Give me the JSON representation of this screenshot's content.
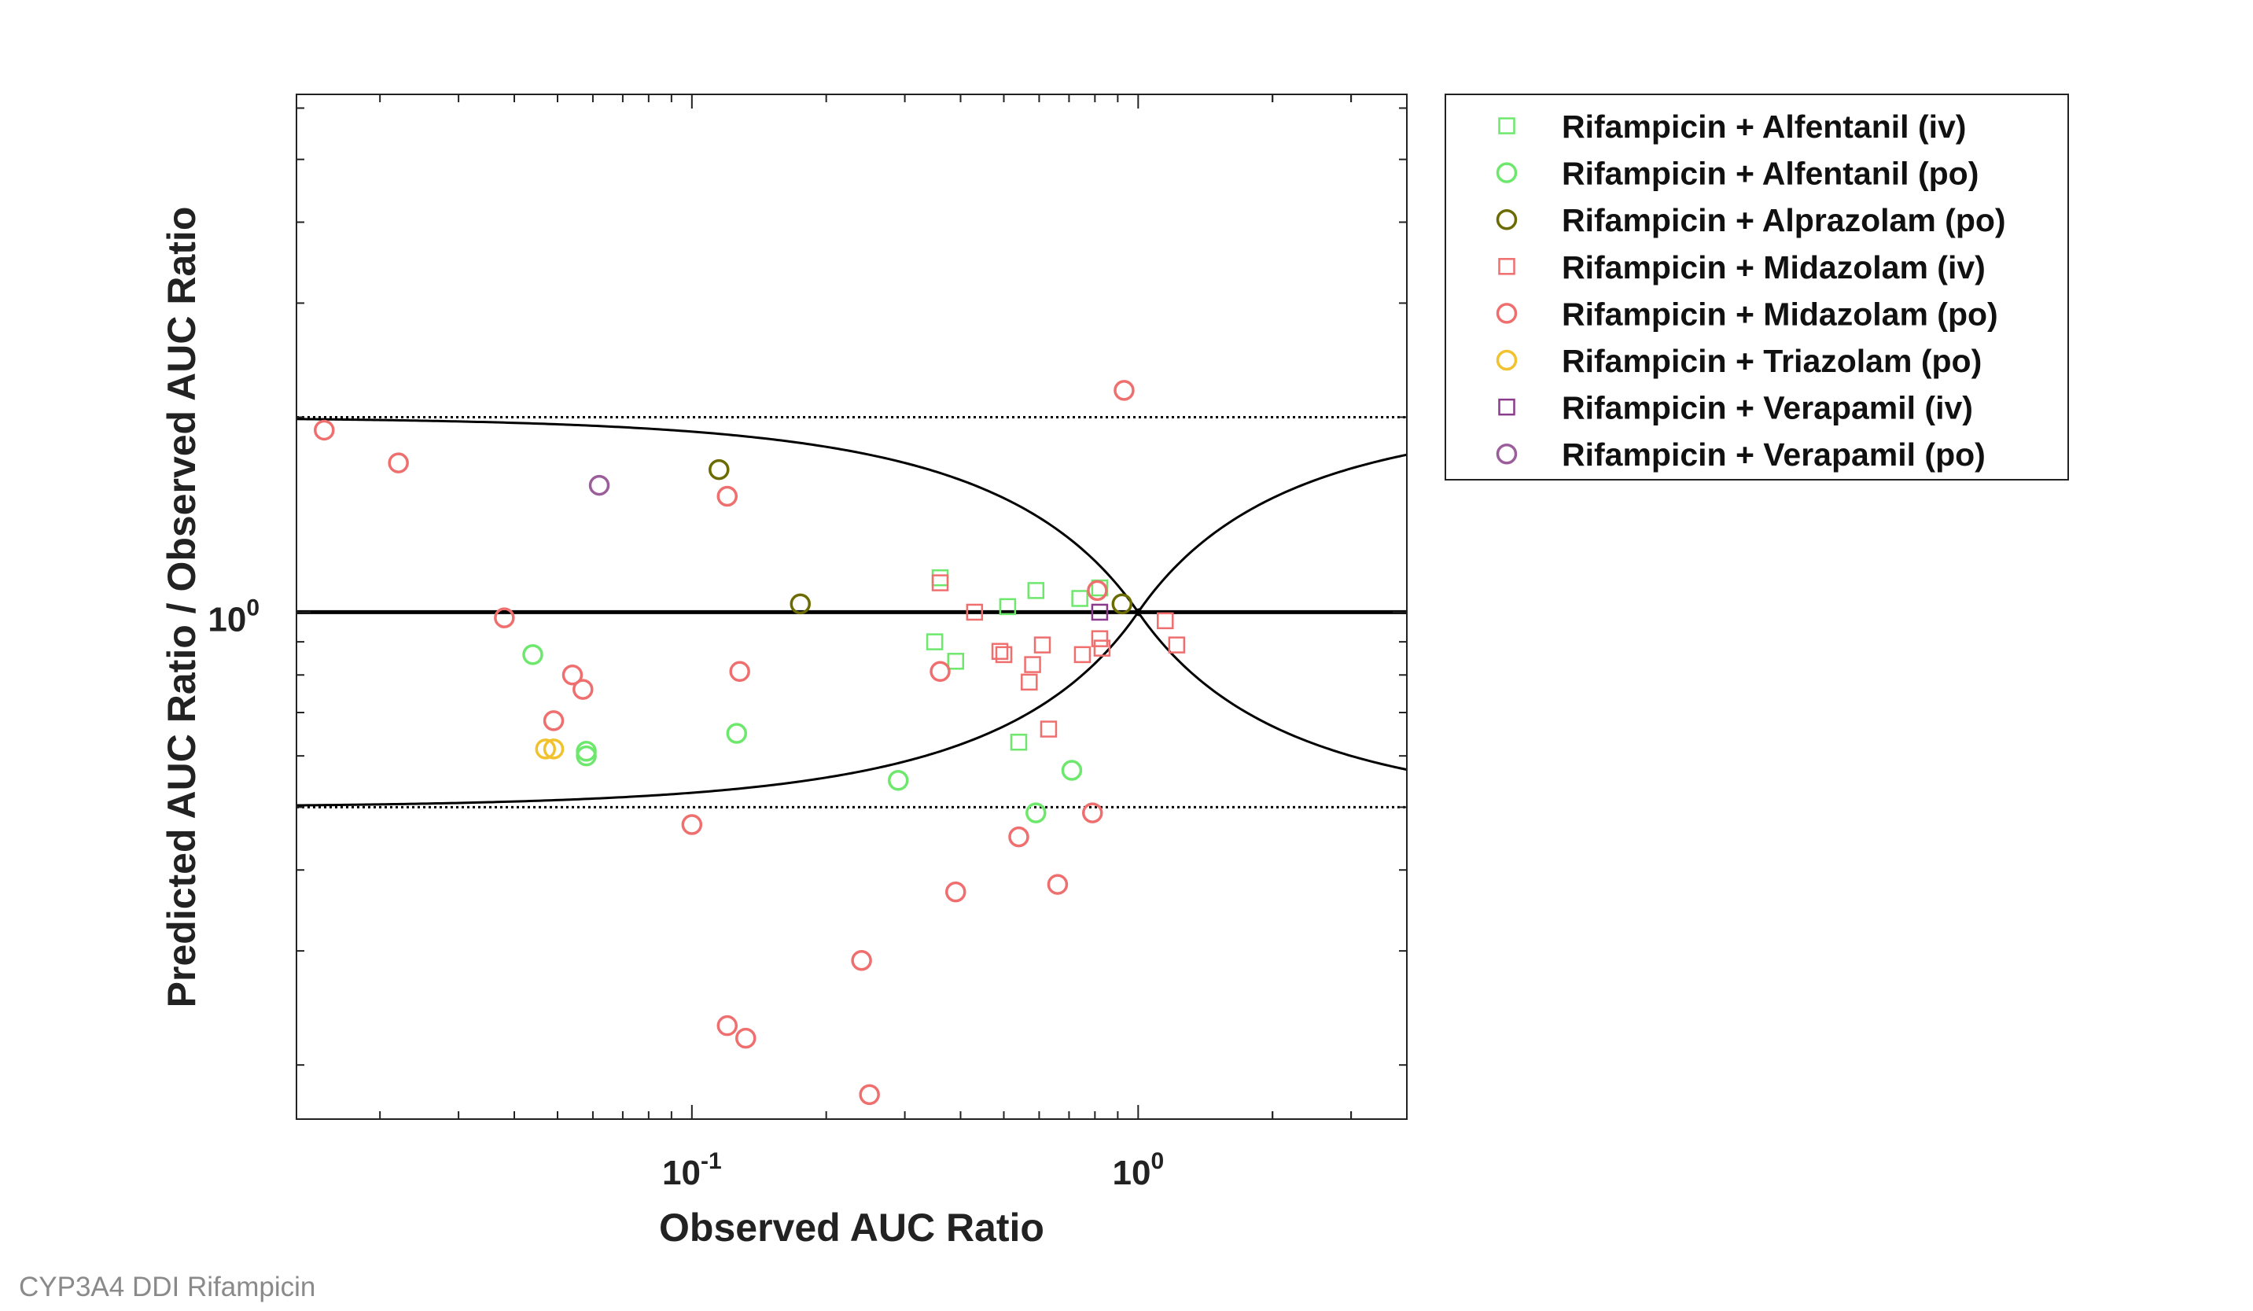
{
  "caption": "CYP3A4 DDI Rifampicin",
  "chart_data": {
    "type": "scatter",
    "title": "",
    "xlabel": "Observed AUC Ratio",
    "ylabel": "Predicted AUC Ratio / Observed AUC Ratio",
    "xscale": "log",
    "yscale": "log",
    "xlim": [
      0.013,
      4.0
    ],
    "ylim": [
      0.165,
      6.3
    ],
    "xtick_labels": [
      {
        "value": 0.1,
        "base": "10",
        "exp": "-1"
      },
      {
        "value": 1,
        "base": "10",
        "exp": "0"
      }
    ],
    "ytick_labels": [
      {
        "value": 1,
        "base": "10",
        "exp": "0"
      }
    ],
    "grid": false,
    "legend_position": "outside top-right",
    "guides": {
      "unity": 1,
      "dotted_limits": [
        0.5,
        2
      ],
      "curve": "guest limits (delta 1)"
    },
    "series": [
      {
        "name": "Rifampicin + Alfentanil (iv)",
        "marker": "square",
        "color": "#6de86d",
        "points": [
          [
            0.36,
            1.13
          ],
          [
            0.51,
            1.02
          ],
          [
            0.59,
            1.08
          ],
          [
            0.74,
            1.05
          ],
          [
            0.82,
            1.09
          ],
          [
            0.35,
            0.9
          ],
          [
            0.39,
            0.84
          ],
          [
            0.54,
            0.63
          ]
        ]
      },
      {
        "name": "Rifampicin + Alfentanil (po)",
        "marker": "circle",
        "color": "#6de86d",
        "points": [
          [
            0.044,
            0.86
          ],
          [
            0.058,
            0.61
          ],
          [
            0.058,
            0.6
          ],
          [
            0.126,
            0.65
          ],
          [
            0.29,
            0.55
          ],
          [
            0.71,
            0.57
          ],
          [
            0.59,
            0.49
          ]
        ]
      },
      {
        "name": "Rifampicin + Alprazolam (po)",
        "marker": "circle",
        "color": "#6b6b00",
        "points": [
          [
            0.115,
            1.66
          ],
          [
            0.175,
            1.03
          ],
          [
            0.92,
            1.03
          ]
        ]
      },
      {
        "name": "Rifampicin + Midazolam (iv)",
        "marker": "square",
        "color": "#ef6f6f",
        "points": [
          [
            0.36,
            1.11
          ],
          [
            0.43,
            1.0
          ],
          [
            0.49,
            0.87
          ],
          [
            0.5,
            0.86
          ],
          [
            0.57,
            0.78
          ],
          [
            0.58,
            0.83
          ],
          [
            0.61,
            0.89
          ],
          [
            0.63,
            0.66
          ],
          [
            0.75,
            0.86
          ],
          [
            0.82,
            0.91
          ],
          [
            0.83,
            0.88
          ],
          [
            1.15,
            0.97
          ],
          [
            1.22,
            0.89
          ]
        ]
      },
      {
        "name": "Rifampicin + Midazolam (po)",
        "marker": "circle",
        "color": "#ef6f6f",
        "points": [
          [
            0.015,
            1.91
          ],
          [
            0.022,
            1.7
          ],
          [
            0.038,
            0.98
          ],
          [
            0.049,
            0.68
          ],
          [
            0.054,
            0.8
          ],
          [
            0.057,
            0.76
          ],
          [
            0.1,
            0.47
          ],
          [
            0.12,
            1.51
          ],
          [
            0.128,
            0.81
          ],
          [
            0.12,
            0.23
          ],
          [
            0.132,
            0.22
          ],
          [
            0.24,
            0.29
          ],
          [
            0.25,
            0.18
          ],
          [
            0.36,
            0.81
          ],
          [
            0.39,
            0.37
          ],
          [
            0.54,
            0.45
          ],
          [
            0.66,
            0.38
          ],
          [
            0.79,
            0.49
          ],
          [
            0.81,
            1.08
          ],
          [
            0.93,
            2.2
          ]
        ]
      },
      {
        "name": "Rifampicin + Triazolam (po)",
        "marker": "circle",
        "color": "#f2c12e",
        "points": [
          [
            0.047,
            0.615
          ],
          [
            0.049,
            0.615
          ]
        ]
      },
      {
        "name": "Rifampicin + Verapamil (iv)",
        "marker": "square",
        "color": "#8b3b8b",
        "points": [
          [
            0.82,
            1.0
          ]
        ]
      },
      {
        "name": "Rifampicin + Verapamil (po)",
        "marker": "circle",
        "color": "#9b5e9b",
        "points": [
          [
            0.062,
            1.57
          ]
        ]
      }
    ]
  }
}
